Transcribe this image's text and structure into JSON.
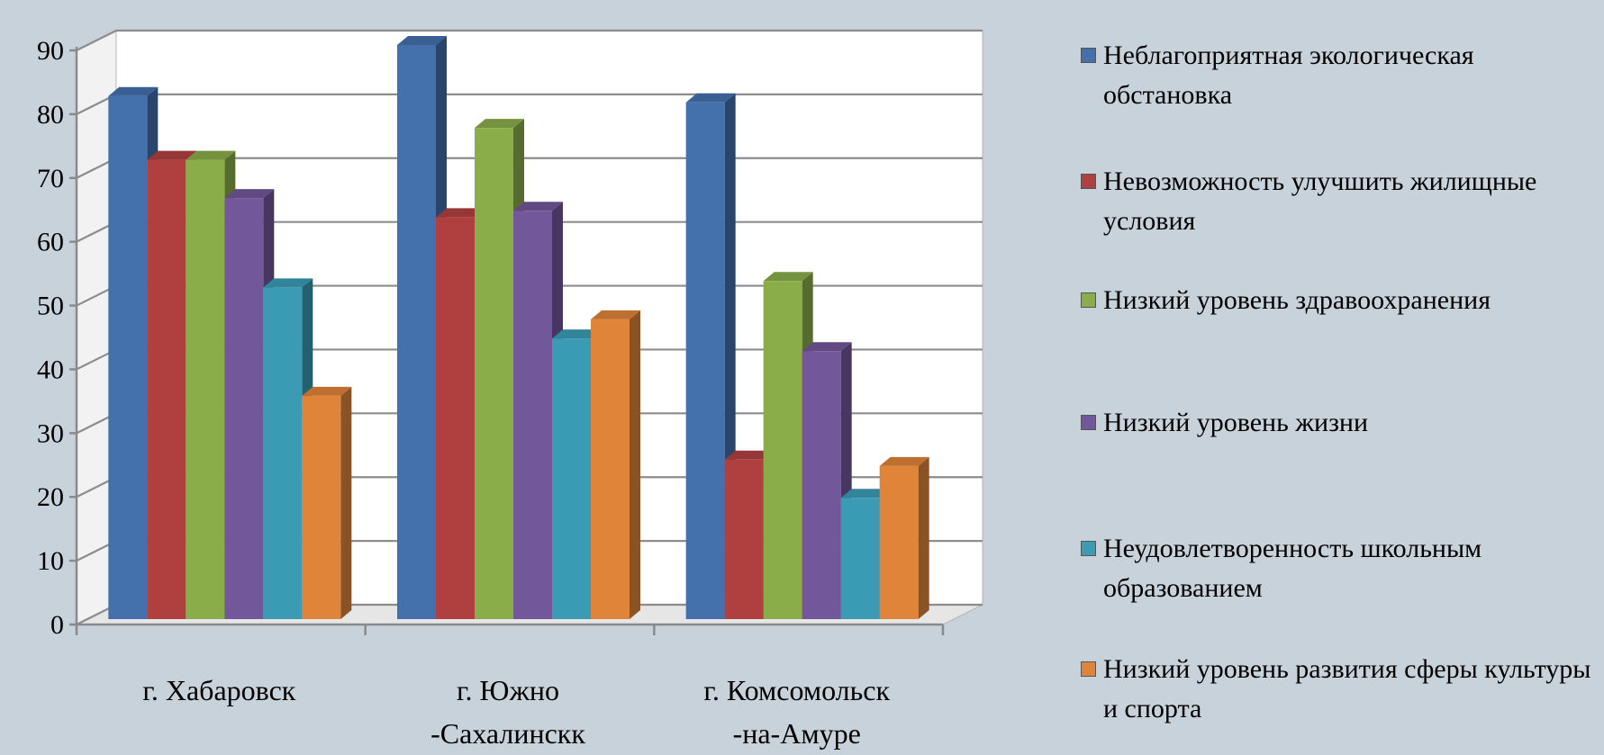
{
  "chart_data": {
    "type": "bar",
    "title": "",
    "xlabel": "",
    "ylabel": "",
    "ylim": [
      0,
      90
    ],
    "yticks": [
      "0",
      "10",
      "20",
      "30",
      "40",
      "50",
      "60",
      "70",
      "80",
      "90"
    ],
    "grid": true,
    "legend_position": "right",
    "categories": [
      [
        "г. Хабаровск"
      ],
      [
        "г. Южно",
        "-Сахалинскк"
      ],
      [
        "г. Комсомольск",
        "-на-Амуре"
      ]
    ],
    "series": [
      {
        "name": "Неблагоприятная экологическая обстановка",
        "color": "#4470ac",
        "values": [
          82,
          90,
          81
        ]
      },
      {
        "name": "Невозможность улучшить жилищные условия",
        "color": "#b0403f",
        "values": [
          72,
          63,
          25
        ]
      },
      {
        "name": "Низкий уровень здравоохранения",
        "color": "#8aad4a",
        "values": [
          72,
          77,
          53
        ]
      },
      {
        "name": "Низкий уровень жизни",
        "color": "#72579a",
        "values": [
          66,
          64,
          42
        ]
      },
      {
        "name": "Неудовлетворенность школьным образованием",
        "color": "#3b9bb5",
        "values": [
          52,
          44,
          19
        ]
      },
      {
        "name": "Низкий уровень развития сферы культуры и спорта",
        "color": "#e0843a",
        "values": [
          35,
          47,
          24
        ]
      }
    ]
  }
}
